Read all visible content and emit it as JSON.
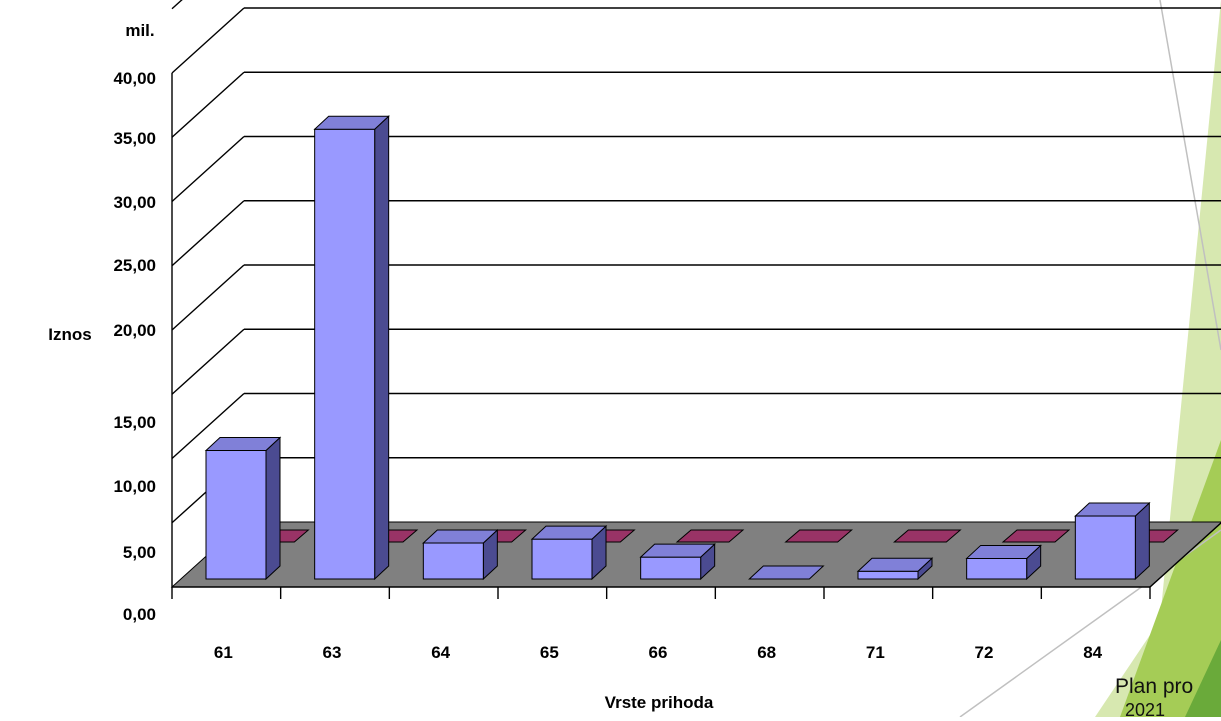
{
  "chart_data": {
    "type": "bar",
    "three_d": true,
    "unit_label": "mil.",
    "ylabel": "Iznos",
    "xlabel": "Vrste  prihoda",
    "categories": [
      "61",
      "63",
      "64",
      "65",
      "66",
      "68",
      "71",
      "72",
      "84"
    ],
    "y_tick_labels": [
      "0,00",
      "5,00",
      "10,00",
      "15,00",
      "20,00",
      "25,00",
      "30,00",
      "35,00",
      "40,00"
    ],
    "ylim": [
      0,
      45
    ],
    "grid": true,
    "series": [
      {
        "values": [
          10.0,
          35.0,
          2.8,
          3.1,
          1.7,
          0.0,
          0.6,
          1.6,
          4.9
        ],
        "color": "#9999ff"
      },
      {
        "values": [
          0.05,
          0.05,
          0.05,
          0.05,
          0.05,
          0.05,
          0.05,
          0.05,
          0.05
        ],
        "color": "#993366"
      }
    ],
    "floor_color": "#808080"
  },
  "slide_footer": {
    "line1": "Plan pro",
    "line2": "2021"
  },
  "theme": {
    "accent_light": "#d7e8b0",
    "accent_mid": "#a5cc56",
    "accent_dark": "#6aaa3a"
  }
}
